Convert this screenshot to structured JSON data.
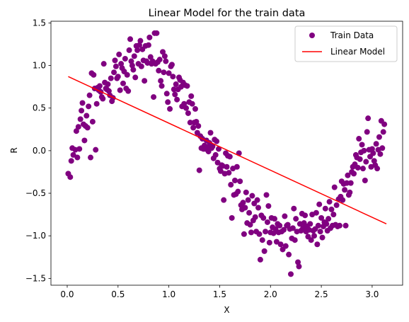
{
  "chart_data": {
    "type": "scatter",
    "title": "Linear Model for the train data",
    "xlabel": "X",
    "ylabel": "R",
    "xlim": [
      -0.16,
      3.3
    ],
    "ylim": [
      -1.58,
      1.52
    ],
    "xticks": [
      0.0,
      0.5,
      1.0,
      1.5,
      2.0,
      2.5,
      3.0
    ],
    "xtick_labels": [
      "0.0",
      "0.5",
      "1.0",
      "1.5",
      "2.0",
      "2.5",
      "3.0"
    ],
    "yticks": [
      -1.5,
      -1.0,
      -0.5,
      0.0,
      0.5,
      1.0,
      1.5
    ],
    "ytick_labels": [
      "−1.5",
      "−1.0",
      "−0.5",
      "0.0",
      "0.5",
      "1.0",
      "1.5"
    ],
    "grid": false,
    "legend": {
      "placement": "top-right",
      "entries": [
        "Train Data",
        "Linear Model"
      ]
    },
    "series": [
      {
        "name": "Train Data",
        "kind": "scatter",
        "color": "#800080",
        "points": [
          [
            0.01,
            -0.27
          ],
          [
            0.03,
            -0.31
          ],
          [
            0.04,
            -0.12
          ],
          [
            0.05,
            0.03
          ],
          [
            0.06,
            -0.05
          ],
          [
            0.08,
            0.01
          ],
          [
            0.09,
            0.23
          ],
          [
            0.1,
            -0.08
          ],
          [
            0.11,
            0.28
          ],
          [
            0.12,
            0.02
          ],
          [
            0.13,
            0.37
          ],
          [
            0.14,
            0.47
          ],
          [
            0.15,
            0.56
          ],
          [
            0.16,
            0.31
          ],
          [
            0.17,
            0.12
          ],
          [
            0.18,
            0.29
          ],
          [
            0.19,
            0.41
          ],
          [
            0.2,
            0.27
          ],
          [
            0.21,
            0.52
          ],
          [
            0.22,
            0.65
          ],
          [
            0.23,
            -0.08
          ],
          [
            0.24,
            0.91
          ],
          [
            0.25,
            0.34
          ],
          [
            0.26,
            0.89
          ],
          [
            0.27,
            0.73
          ],
          [
            0.28,
            0.01
          ],
          [
            0.29,
            0.55
          ],
          [
            0.3,
            0.74
          ],
          [
            0.31,
            0.71
          ],
          [
            0.32,
            0.76
          ],
          [
            0.33,
            0.69
          ],
          [
            0.34,
            0.63
          ],
          [
            0.35,
            0.61
          ],
          [
            0.36,
            1.02
          ],
          [
            0.37,
            0.8
          ],
          [
            0.38,
            0.73
          ],
          [
            0.39,
            0.72
          ],
          [
            0.4,
            0.78
          ],
          [
            0.41,
            0.7
          ],
          [
            0.42,
            0.65
          ],
          [
            0.43,
            0.85
          ],
          [
            0.44,
            0.58
          ],
          [
            0.45,
            0.62
          ],
          [
            0.46,
            0.92
          ],
          [
            0.47,
            1.06
          ],
          [
            0.48,
            0.99
          ],
          [
            0.49,
            0.85
          ],
          [
            0.5,
            0.87
          ],
          [
            0.51,
            1.13
          ],
          [
            0.52,
            0.71
          ],
          [
            0.53,
            1.02
          ],
          [
            0.54,
            0.97
          ],
          [
            0.55,
            0.79
          ],
          [
            0.56,
            0.93
          ],
          [
            0.57,
            1.08
          ],
          [
            0.58,
            0.73
          ],
          [
            0.59,
            0.89
          ],
          [
            0.6,
            0.7
          ],
          [
            0.61,
            1.18
          ],
          [
            0.62,
            1.31
          ],
          [
            0.63,
            1.05
          ],
          [
            0.64,
            1.0
          ],
          [
            0.65,
            0.95
          ],
          [
            0.66,
            1.11
          ],
          [
            0.67,
            0.86
          ],
          [
            0.68,
            1.23
          ],
          [
            0.69,
            1.18
          ],
          [
            0.7,
            1.02
          ],
          [
            0.71,
            1.24
          ],
          [
            0.72,
            1.29
          ],
          [
            0.73,
            0.99
          ],
          [
            0.74,
            1.19
          ],
          [
            0.75,
            1.06
          ],
          [
            0.76,
            0.82
          ],
          [
            0.77,
            1.23
          ],
          [
            0.78,
            1.05
          ],
          [
            0.79,
            1.03
          ],
          [
            0.8,
            1.24
          ],
          [
            0.81,
            1.33
          ],
          [
            0.82,
            1.1
          ],
          [
            0.83,
            1.02
          ],
          [
            0.84,
            1.05
          ],
          [
            0.85,
            0.63
          ],
          [
            0.86,
            1.38
          ],
          [
            0.87,
            1.02
          ],
          [
            0.88,
            1.38
          ],
          [
            0.89,
            1.04
          ],
          [
            0.9,
            0.94
          ],
          [
            0.91,
            1.07
          ],
          [
            0.92,
            0.82
          ],
          [
            0.93,
            0.76
          ],
          [
            0.94,
            1.16
          ],
          [
            0.95,
            0.92
          ],
          [
            0.96,
            1.11
          ],
          [
            0.97,
            1.05
          ],
          [
            0.98,
            0.67
          ],
          [
            0.99,
            0.57
          ],
          [
            1.0,
            0.91
          ],
          [
            1.01,
            0.49
          ],
          [
            1.02,
            0.99
          ],
          [
            1.03,
            1.01
          ],
          [
            1.04,
            0.87
          ],
          [
            1.05,
            0.72
          ],
          [
            1.06,
            0.66
          ],
          [
            1.07,
            0.78
          ],
          [
            1.08,
            0.6
          ],
          [
            1.09,
            0.72
          ],
          [
            1.1,
            0.86
          ],
          [
            1.11,
            0.83
          ],
          [
            1.12,
            0.75
          ],
          [
            1.13,
            0.52
          ],
          [
            1.14,
            0.8
          ],
          [
            1.15,
            0.55
          ],
          [
            1.16,
            0.77
          ],
          [
            1.17,
            0.5
          ],
          [
            1.18,
            0.76
          ],
          [
            1.19,
            0.44
          ],
          [
            1.2,
            0.57
          ],
          [
            1.21,
            0.33
          ],
          [
            1.22,
            0.64
          ],
          [
            1.23,
            0.55
          ],
          [
            1.24,
            0.27
          ],
          [
            1.25,
            0.33
          ],
          [
            1.26,
            0.49
          ],
          [
            1.27,
            0.34
          ],
          [
            1.28,
            0.21
          ],
          [
            1.29,
            0.29
          ],
          [
            1.3,
            -0.23
          ],
          [
            1.31,
            0.17
          ],
          [
            1.32,
            0.03
          ],
          [
            1.33,
            0.14
          ],
          [
            1.34,
            0.02
          ],
          [
            1.35,
            0.06
          ],
          [
            1.36,
            0.02
          ],
          [
            1.37,
            0.12
          ],
          [
            1.38,
            0.04
          ],
          [
            1.39,
            -0.01
          ],
          [
            1.4,
            0.09
          ],
          [
            1.41,
            0.21
          ],
          [
            1.42,
            0.03
          ],
          [
            1.43,
            0.05
          ],
          [
            1.44,
            -0.09
          ],
          [
            1.45,
            0.13
          ],
          [
            1.46,
            -0.05
          ],
          [
            1.47,
            0.11
          ],
          [
            1.48,
            -0.14
          ],
          [
            1.49,
            0.02
          ],
          [
            1.5,
            -0.21
          ],
          [
            1.51,
            -0.24
          ],
          [
            1.52,
            -0.17
          ],
          [
            1.53,
            -0.18
          ],
          [
            1.54,
            -0.58
          ],
          [
            1.55,
            -0.27
          ],
          [
            1.56,
            -0.03
          ],
          [
            1.57,
            -0.19
          ],
          [
            1.58,
            -0.06
          ],
          [
            1.59,
            -0.26
          ],
          [
            1.6,
            -0.07
          ],
          [
            1.61,
            -0.4
          ],
          [
            1.62,
            -0.79
          ],
          [
            1.63,
            -0.21
          ],
          [
            1.64,
            -0.52
          ],
          [
            1.65,
            -0.35
          ],
          [
            1.66,
            -0.51
          ],
          [
            1.67,
            -0.19
          ],
          [
            1.68,
            -0.48
          ],
          [
            1.69,
            -0.03
          ],
          [
            1.7,
            -0.36
          ],
          [
            1.71,
            -0.64
          ],
          [
            1.72,
            -0.69
          ],
          [
            1.73,
            -0.61
          ],
          [
            1.74,
            -0.98
          ],
          [
            1.75,
            -0.67
          ],
          [
            1.76,
            -0.49
          ],
          [
            1.77,
            -0.85
          ],
          [
            1.78,
            -0.58
          ],
          [
            1.79,
            -0.73
          ],
          [
            1.8,
            -0.87
          ],
          [
            1.81,
            -0.96
          ],
          [
            1.82,
            -0.53
          ],
          [
            1.83,
            -0.82
          ],
          [
            1.84,
            -0.62
          ],
          [
            1.85,
            -0.78
          ],
          [
            1.86,
            -0.95
          ],
          [
            1.87,
            -0.58
          ],
          [
            1.88,
            -0.67
          ],
          [
            1.89,
            -0.98
          ],
          [
            1.9,
            -1.28
          ],
          [
            1.91,
            -0.76
          ],
          [
            1.92,
            -1.05
          ],
          [
            1.93,
            -0.79
          ],
          [
            1.94,
            -1.18
          ],
          [
            1.95,
            -0.95
          ],
          [
            1.96,
            -0.52
          ],
          [
            1.97,
            -0.84
          ],
          [
            1.98,
            -0.65
          ],
          [
            1.99,
            -1.08
          ],
          [
            2.0,
            -0.96
          ],
          [
            2.01,
            -0.79
          ],
          [
            2.02,
            -0.9
          ],
          [
            2.03,
            -0.97
          ],
          [
            2.04,
            -0.8
          ],
          [
            2.05,
            -0.92
          ],
          [
            2.06,
            -1.07
          ],
          [
            2.07,
            -0.86
          ],
          [
            2.08,
            -0.96
          ],
          [
            2.09,
            -0.88
          ],
          [
            2.1,
            -1.1
          ],
          [
            2.11,
            -0.95
          ],
          [
            2.12,
            -1.16
          ],
          [
            2.13,
            -0.93
          ],
          [
            2.14,
            -0.77
          ],
          [
            2.15,
            -1.12
          ],
          [
            2.16,
            -0.88
          ],
          [
            2.17,
            -0.87
          ],
          [
            2.18,
            -1.22
          ],
          [
            2.19,
            -0.92
          ],
          [
            2.2,
            -1.45
          ],
          [
            2.21,
            -1.03
          ],
          [
            2.22,
            -0.91
          ],
          [
            2.23,
            -0.68
          ],
          [
            2.24,
            -1.05
          ],
          [
            2.25,
            -0.8
          ],
          [
            2.26,
            -0.95
          ],
          [
            2.27,
            -1.31
          ],
          [
            2.28,
            -1.36
          ],
          [
            2.29,
            -0.86
          ],
          [
            2.3,
            -0.94
          ],
          [
            2.31,
            -0.74
          ],
          [
            2.32,
            -0.91
          ],
          [
            2.33,
            -0.85
          ],
          [
            2.34,
            -0.76
          ],
          [
            2.35,
            -0.95
          ],
          [
            2.36,
            -0.89
          ],
          [
            2.37,
            -1.01
          ],
          [
            2.38,
            -0.93
          ],
          [
            2.39,
            -0.86
          ],
          [
            2.4,
            -1.05
          ],
          [
            2.41,
            -0.75
          ],
          [
            2.42,
            -0.94
          ],
          [
            2.43,
            -1.0
          ],
          [
            2.44,
            -0.92
          ],
          [
            2.45,
            -0.73
          ],
          [
            2.46,
            -1.1
          ],
          [
            2.47,
            -0.88
          ],
          [
            2.48,
            -0.63
          ],
          [
            2.49,
            -0.95
          ],
          [
            2.5,
            -0.79
          ],
          [
            2.51,
            -1.02
          ],
          [
            2.52,
            -0.89
          ],
          [
            2.53,
            -0.84
          ],
          [
            2.54,
            -0.68
          ],
          [
            2.55,
            -0.86
          ],
          [
            2.56,
            -0.94
          ],
          [
            2.57,
            -0.8
          ],
          [
            2.58,
            -0.6
          ],
          [
            2.59,
            -0.91
          ],
          [
            2.6,
            -0.69
          ],
          [
            2.61,
            -0.88
          ],
          [
            2.62,
            -0.75
          ],
          [
            2.63,
            -0.43
          ],
          [
            2.64,
            -0.87
          ],
          [
            2.65,
            -0.64
          ],
          [
            2.66,
            -0.89
          ],
          [
            2.67,
            -0.57
          ],
          [
            2.68,
            -0.88
          ],
          [
            2.69,
            -0.54
          ],
          [
            2.7,
            -0.36
          ],
          [
            2.71,
            -0.58
          ],
          [
            2.72,
            -0.39
          ],
          [
            2.73,
            -0.46
          ],
          [
            2.74,
            -0.88
          ],
          [
            2.75,
            -0.38
          ],
          [
            2.76,
            -0.29
          ],
          [
            2.77,
            -0.52
          ],
          [
            2.78,
            -0.49
          ],
          [
            2.79,
            -0.38
          ],
          [
            2.8,
            -0.25
          ],
          [
            2.81,
            -0.19
          ],
          [
            2.82,
            -0.27
          ],
          [
            2.83,
            -0.16
          ],
          [
            2.84,
            -0.05
          ],
          [
            2.85,
            -0.08
          ],
          [
            2.86,
            -0.2
          ],
          [
            2.87,
            0.14
          ],
          [
            2.88,
            -0.1
          ],
          [
            2.89,
            -0.02
          ],
          [
            2.9,
            0.07
          ],
          [
            2.91,
            -0.21
          ],
          [
            2.92,
            0.0
          ],
          [
            2.93,
            -0.35
          ],
          [
            2.94,
            -0.13
          ],
          [
            2.95,
            0.22
          ],
          [
            2.96,
            0.38
          ],
          [
            2.97,
            0.01
          ],
          [
            2.98,
            -0.07
          ],
          [
            2.99,
            -0.19
          ],
          [
            3.0,
            0.02
          ],
          [
            3.01,
            -0.03
          ],
          [
            3.02,
            -0.12
          ],
          [
            3.03,
            -0.17
          ],
          [
            3.04,
            0.08
          ],
          [
            3.05,
            -0.21
          ],
          [
            3.06,
            0.01
          ],
          [
            3.07,
            0.16
          ],
          [
            3.08,
            -0.04
          ],
          [
            3.09,
            0.35
          ],
          [
            3.1,
            0.03
          ],
          [
            3.11,
            0.22
          ],
          [
            3.12,
            0.31
          ]
        ]
      },
      {
        "name": "Linear Model",
        "kind": "line",
        "color": "#ff0000",
        "points": [
          [
            0.01,
            0.87
          ],
          [
            3.14,
            -0.86
          ]
        ]
      }
    ]
  }
}
